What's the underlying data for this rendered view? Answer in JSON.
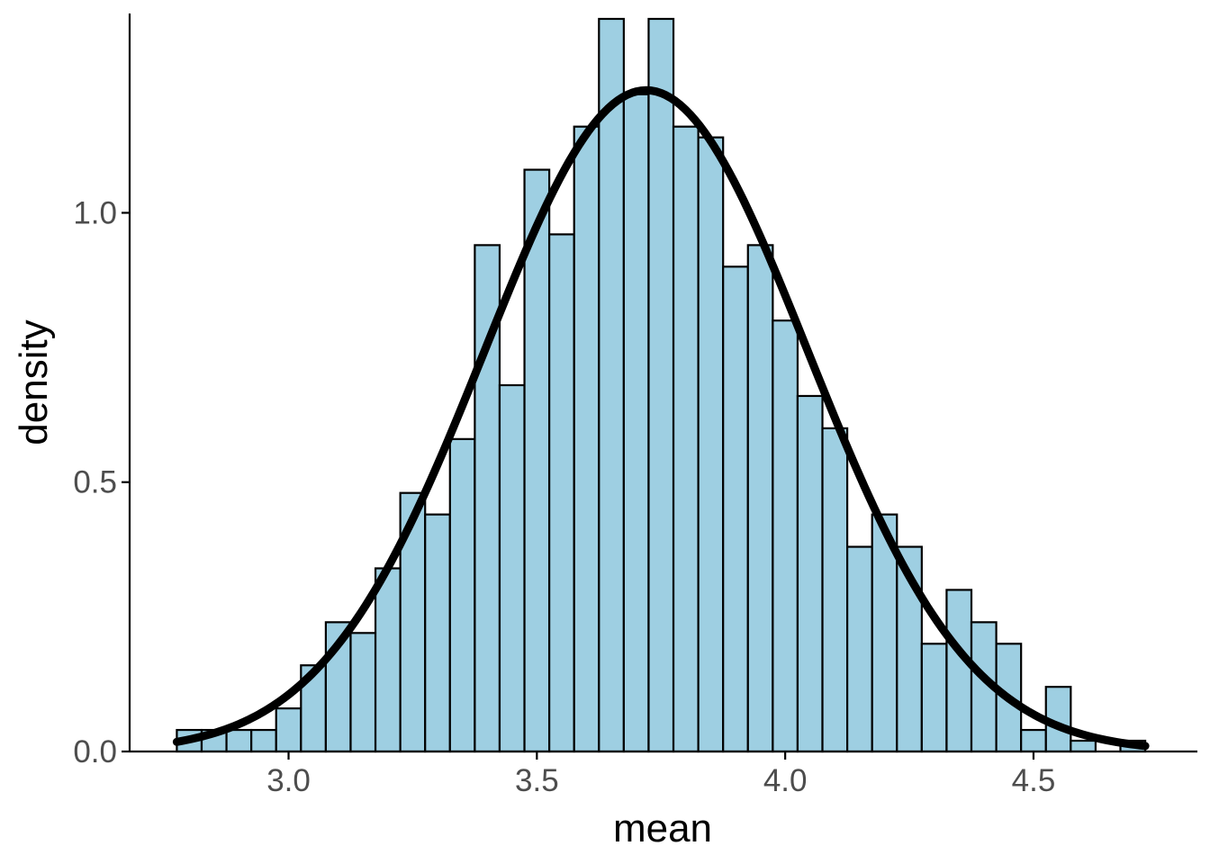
{
  "chart_data": {
    "type": "bar",
    "subtype": "histogram-with-density-curve",
    "xlabel": "mean",
    "ylabel": "density",
    "xlim": [
      2.68,
      4.83
    ],
    "ylim": [
      0,
      1.37
    ],
    "x_ticks": [
      3.0,
      3.5,
      4.0,
      4.5
    ],
    "x_tick_labels": [
      "3.0",
      "3.5",
      "4.0",
      "4.5"
    ],
    "y_ticks": [
      0.0,
      0.5,
      1.0
    ],
    "y_tick_labels": [
      "0.0",
      "0.5",
      "1.0"
    ],
    "grid": false,
    "bin_width": 0.05,
    "bins": [
      {
        "x0": 2.775,
        "x1": 2.825,
        "density": 0.04
      },
      {
        "x0": 2.825,
        "x1": 2.875,
        "density": 0.04
      },
      {
        "x0": 2.875,
        "x1": 2.925,
        "density": 0.04
      },
      {
        "x0": 2.925,
        "x1": 2.975,
        "density": 0.04
      },
      {
        "x0": 2.975,
        "x1": 3.025,
        "density": 0.08
      },
      {
        "x0": 3.025,
        "x1": 3.075,
        "density": 0.16
      },
      {
        "x0": 3.075,
        "x1": 3.125,
        "density": 0.24
      },
      {
        "x0": 3.125,
        "x1": 3.175,
        "density": 0.22
      },
      {
        "x0": 3.175,
        "x1": 3.225,
        "density": 0.34
      },
      {
        "x0": 3.225,
        "x1": 3.275,
        "density": 0.48
      },
      {
        "x0": 3.275,
        "x1": 3.325,
        "density": 0.44
      },
      {
        "x0": 3.325,
        "x1": 3.375,
        "density": 0.58
      },
      {
        "x0": 3.375,
        "x1": 3.425,
        "density": 0.94
      },
      {
        "x0": 3.425,
        "x1": 3.475,
        "density": 0.68
      },
      {
        "x0": 3.475,
        "x1": 3.525,
        "density": 1.08
      },
      {
        "x0": 3.525,
        "x1": 3.575,
        "density": 0.96
      },
      {
        "x0": 3.575,
        "x1": 3.625,
        "density": 1.16
      },
      {
        "x0": 3.625,
        "x1": 3.675,
        "density": 1.36
      },
      {
        "x0": 3.675,
        "x1": 3.725,
        "density": 1.22
      },
      {
        "x0": 3.725,
        "x1": 3.775,
        "density": 1.36
      },
      {
        "x0": 3.775,
        "x1": 3.825,
        "density": 1.16
      },
      {
        "x0": 3.825,
        "x1": 3.875,
        "density": 1.14
      },
      {
        "x0": 3.875,
        "x1": 3.925,
        "density": 0.9
      },
      {
        "x0": 3.925,
        "x1": 3.975,
        "density": 0.94
      },
      {
        "x0": 3.975,
        "x1": 4.025,
        "density": 0.8
      },
      {
        "x0": 4.025,
        "x1": 4.075,
        "density": 0.66
      },
      {
        "x0": 4.075,
        "x1": 4.125,
        "density": 0.6
      },
      {
        "x0": 4.125,
        "x1": 4.175,
        "density": 0.38
      },
      {
        "x0": 4.175,
        "x1": 4.225,
        "density": 0.44
      },
      {
        "x0": 4.225,
        "x1": 4.275,
        "density": 0.38
      },
      {
        "x0": 4.275,
        "x1": 4.325,
        "density": 0.2
      },
      {
        "x0": 4.325,
        "x1": 4.375,
        "density": 0.3
      },
      {
        "x0": 4.375,
        "x1": 4.425,
        "density": 0.24
      },
      {
        "x0": 4.425,
        "x1": 4.475,
        "density": 0.2
      },
      {
        "x0": 4.475,
        "x1": 4.525,
        "density": 0.04
      },
      {
        "x0": 4.525,
        "x1": 4.575,
        "density": 0.12
      },
      {
        "x0": 4.575,
        "x1": 4.625,
        "density": 0.02
      },
      {
        "x0": 4.625,
        "x1": 4.675,
        "density": 0.0
      },
      {
        "x0": 4.675,
        "x1": 4.725,
        "density": 0.02
      }
    ],
    "density_curve": {
      "type": "normal",
      "mean": 3.72,
      "sd": 0.325,
      "x_range": [
        2.775,
        4.725
      ]
    },
    "colors": {
      "bar_fill": "#9ecfe2",
      "bar_outline": "#000000",
      "curve": "#000000",
      "tick_label": "#4d4d4d",
      "axis_line": "#000000",
      "axis_title": "#000000",
      "background": "#ffffff"
    }
  }
}
